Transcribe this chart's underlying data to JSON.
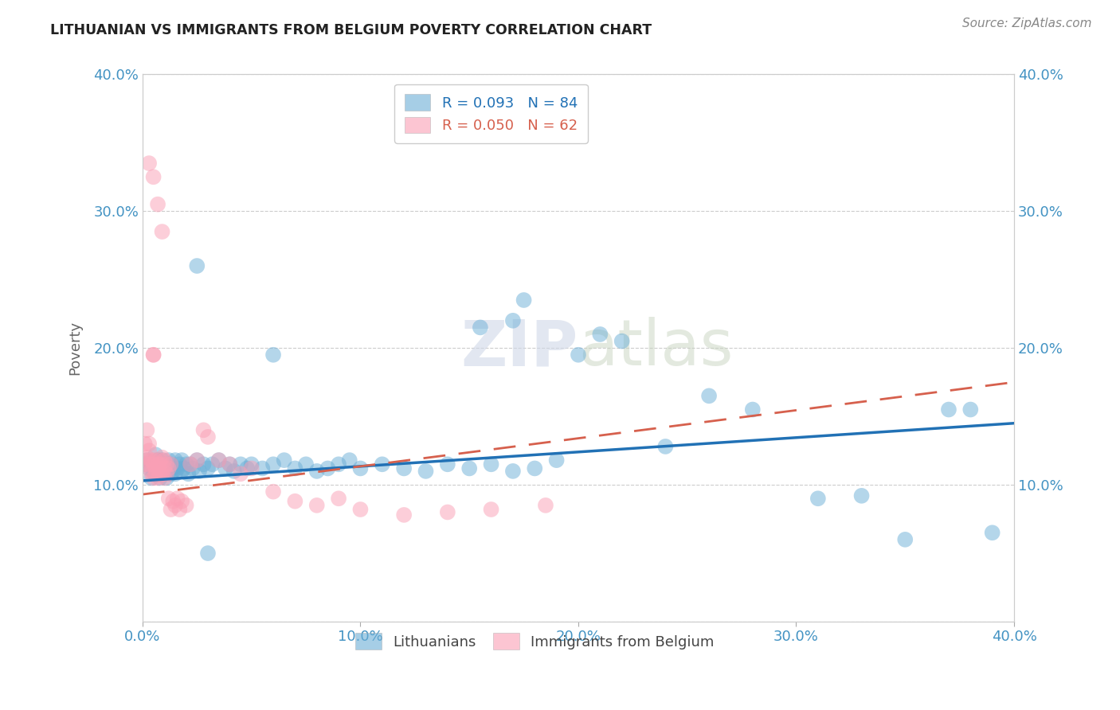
{
  "title": "LITHUANIAN VS IMMIGRANTS FROM BELGIUM POVERTY CORRELATION CHART",
  "source": "Source: ZipAtlas.com",
  "ylabel": "Poverty",
  "watermark": "ZIPatlas",
  "blue_R": 0.093,
  "blue_N": 84,
  "pink_R": 0.05,
  "pink_N": 62,
  "xlim": [
    0.0,
    0.4
  ],
  "ylim": [
    0.0,
    0.4
  ],
  "xticks": [
    0.0,
    0.1,
    0.2,
    0.3,
    0.4
  ],
  "yticks": [
    0.0,
    0.1,
    0.2,
    0.3,
    0.4
  ],
  "xticklabels": [
    "0.0%",
    "10.0%",
    "20.0%",
    "30.0%",
    "40.0%"
  ],
  "yticklabels_left": [
    "",
    "10.0%",
    "20.0%",
    "30.0%",
    "40.0%"
  ],
  "yticklabels_right": [
    "",
    "10.0%",
    "20.0%",
    "30.0%",
    "40.0%"
  ],
  "blue_color": "#6baed6",
  "pink_color": "#fa9fb5",
  "blue_line_color": "#2171b5",
  "pink_line_color": "#d6604d",
  "axis_label_color": "#4393c3",
  "blue_x": [
    0.001,
    0.002,
    0.003,
    0.004,
    0.005,
    0.005,
    0.006,
    0.006,
    0.007,
    0.007,
    0.008,
    0.008,
    0.009,
    0.009,
    0.01,
    0.01,
    0.011,
    0.011,
    0.012,
    0.012,
    0.013,
    0.013,
    0.014,
    0.014,
    0.015,
    0.015,
    0.016,
    0.017,
    0.018,
    0.018,
    0.019,
    0.02,
    0.021,
    0.022,
    0.023,
    0.025,
    0.026,
    0.028,
    0.03,
    0.032,
    0.035,
    0.038,
    0.04,
    0.042,
    0.045,
    0.048,
    0.05,
    0.055,
    0.06,
    0.065,
    0.07,
    0.075,
    0.08,
    0.085,
    0.09,
    0.095,
    0.1,
    0.11,
    0.12,
    0.13,
    0.14,
    0.15,
    0.16,
    0.17,
    0.18,
    0.19,
    0.2,
    0.21,
    0.22,
    0.24,
    0.26,
    0.28,
    0.31,
    0.33,
    0.35,
    0.37,
    0.39,
    0.025,
    0.06,
    0.155,
    0.17,
    0.175,
    0.38,
    0.03
  ],
  "blue_y": [
    0.115,
    0.118,
    0.112,
    0.105,
    0.11,
    0.115,
    0.108,
    0.122,
    0.112,
    0.118,
    0.105,
    0.115,
    0.11,
    0.118,
    0.108,
    0.112,
    0.115,
    0.105,
    0.118,
    0.112,
    0.108,
    0.115,
    0.112,
    0.11,
    0.118,
    0.108,
    0.112,
    0.115,
    0.11,
    0.118,
    0.112,
    0.115,
    0.108,
    0.115,
    0.112,
    0.118,
    0.11,
    0.115,
    0.112,
    0.115,
    0.118,
    0.112,
    0.115,
    0.11,
    0.115,
    0.112,
    0.115,
    0.112,
    0.115,
    0.118,
    0.112,
    0.115,
    0.11,
    0.112,
    0.115,
    0.118,
    0.112,
    0.115,
    0.112,
    0.11,
    0.115,
    0.112,
    0.115,
    0.11,
    0.112,
    0.118,
    0.195,
    0.21,
    0.205,
    0.128,
    0.165,
    0.155,
    0.09,
    0.092,
    0.06,
    0.155,
    0.065,
    0.26,
    0.195,
    0.215,
    0.22,
    0.235,
    0.155,
    0.05
  ],
  "pink_x": [
    0.001,
    0.001,
    0.002,
    0.002,
    0.002,
    0.003,
    0.003,
    0.003,
    0.004,
    0.004,
    0.004,
    0.005,
    0.005,
    0.005,
    0.005,
    0.006,
    0.006,
    0.006,
    0.007,
    0.007,
    0.007,
    0.008,
    0.008,
    0.008,
    0.009,
    0.009,
    0.01,
    0.01,
    0.01,
    0.011,
    0.011,
    0.012,
    0.012,
    0.013,
    0.013,
    0.014,
    0.015,
    0.016,
    0.017,
    0.018,
    0.02,
    0.022,
    0.025,
    0.028,
    0.03,
    0.035,
    0.04,
    0.045,
    0.05,
    0.06,
    0.07,
    0.08,
    0.09,
    0.1,
    0.12,
    0.14,
    0.16,
    0.185,
    0.003,
    0.005,
    0.007,
    0.009
  ],
  "pink_y": [
    0.115,
    0.13,
    0.14,
    0.12,
    0.118,
    0.13,
    0.115,
    0.125,
    0.118,
    0.11,
    0.108,
    0.195,
    0.115,
    0.105,
    0.195,
    0.118,
    0.108,
    0.112,
    0.115,
    0.105,
    0.112,
    0.118,
    0.108,
    0.115,
    0.12,
    0.108,
    0.112,
    0.118,
    0.105,
    0.115,
    0.108,
    0.112,
    0.09,
    0.115,
    0.082,
    0.088,
    0.085,
    0.09,
    0.082,
    0.088,
    0.085,
    0.115,
    0.118,
    0.14,
    0.135,
    0.118,
    0.115,
    0.108,
    0.112,
    0.095,
    0.088,
    0.085,
    0.09,
    0.082,
    0.078,
    0.08,
    0.082,
    0.085,
    0.335,
    0.325,
    0.305,
    0.285
  ]
}
